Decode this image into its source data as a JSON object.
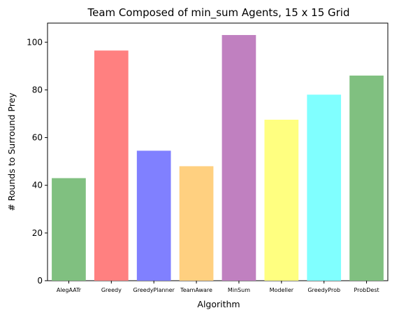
{
  "chart_data": {
    "type": "bar",
    "title": "Team Composed of min_sum Agents, 15 x 15 Grid",
    "xlabel": "Algorithm",
    "ylabel": "# Rounds to Surround Prey",
    "categories": [
      "AlegAATr",
      "Greedy",
      "GreedyPlanner",
      "TeamAware",
      "MinSum",
      "Modeller",
      "GreedyProb",
      "ProbDest"
    ],
    "values": [
      43,
      96.5,
      54.5,
      48,
      103,
      67.5,
      78,
      86
    ],
    "colors": [
      "#80c080",
      "#ff8080",
      "#8080ff",
      "#ffd080",
      "#c080c0",
      "#ffff80",
      "#80ffff",
      "#80c080"
    ],
    "ylim": [
      0,
      108
    ],
    "yticks": [
      0,
      20,
      40,
      60,
      80,
      100
    ],
    "grid": false
  }
}
